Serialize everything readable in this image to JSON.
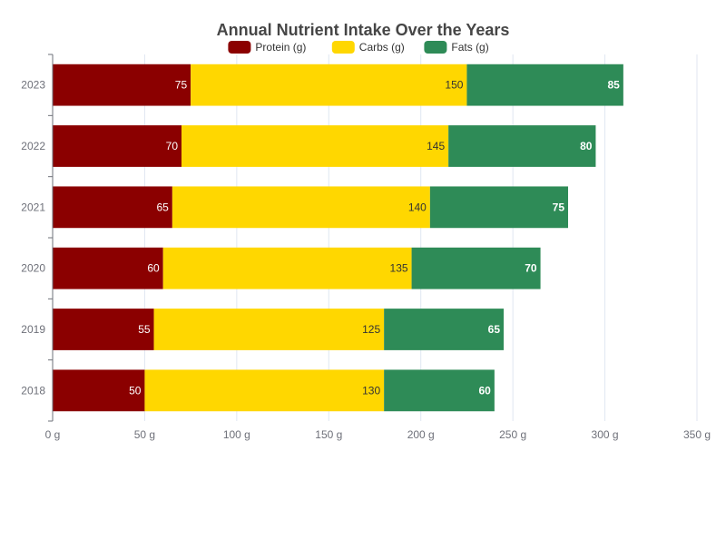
{
  "chart_data": {
    "type": "bar",
    "orientation": "horizontal",
    "stacked": true,
    "title": "Annual Nutrient Intake Over the Years",
    "categories": [
      "2018",
      "2019",
      "2020",
      "2021",
      "2022",
      "2023"
    ],
    "series": [
      {
        "name": "Protein (g)",
        "color": "#8b0000",
        "label_color": "#ffffff",
        "label_bold": false,
        "values": [
          50,
          55,
          60,
          65,
          70,
          75
        ]
      },
      {
        "name": "Carbs (g)",
        "color": "#ffd700",
        "label_color": "#333333",
        "label_bold": false,
        "values": [
          130,
          125,
          135,
          140,
          145,
          150
        ]
      },
      {
        "name": "Fats (g)",
        "color": "#2e8b57",
        "label_color": "#ffffff",
        "label_bold": true,
        "values": [
          60,
          65,
          70,
          75,
          80,
          85
        ]
      }
    ],
    "x_axis": {
      "range": [
        0,
        350
      ],
      "ticks": [
        0,
        50,
        100,
        150,
        200,
        250,
        300,
        350
      ],
      "tick_labels": [
        "0 g",
        "50 g",
        "100 g",
        "150 g",
        "200 g",
        "250 g",
        "300 g",
        "350 g"
      ]
    },
    "grid": true,
    "legend_position": "top-center",
    "category_order": "bottom-to-top"
  }
}
